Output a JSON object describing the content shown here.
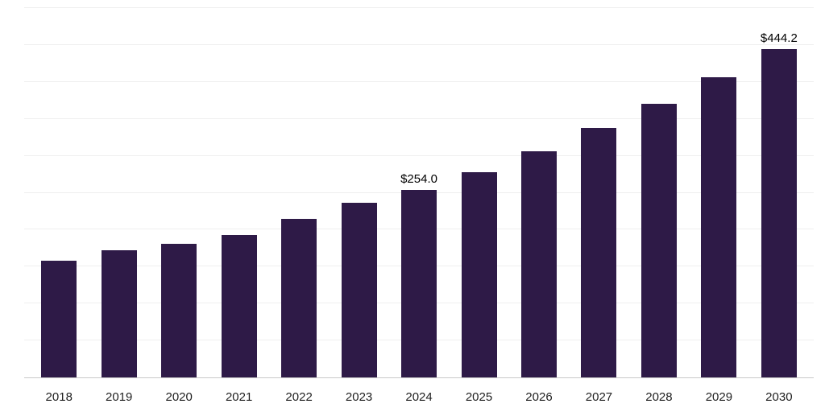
{
  "chart_data": {
    "type": "bar",
    "title": "",
    "xlabel": "",
    "ylabel": "",
    "categories": [
      "2018",
      "2019",
      "2020",
      "2021",
      "2022",
      "2023",
      "2024",
      "2025",
      "2026",
      "2027",
      "2028",
      "2029",
      "2030"
    ],
    "values": [
      158,
      172,
      181,
      193,
      215,
      236,
      254.0,
      278,
      306,
      338,
      370,
      406,
      444.2
    ],
    "data_labels": [
      {
        "category": "2024",
        "text": "$254.0"
      },
      {
        "category": "2030",
        "text": "$444.2"
      }
    ],
    "bar_color": "#2e1a47",
    "grid": true,
    "grid_step": 50,
    "ylim": [
      0,
      500
    ],
    "legend": "none",
    "y_axis_labels_visible": false
  },
  "colors": {
    "background": "#ffffff",
    "bar": "#2e1a47",
    "gridline": "#efefef",
    "axis_line": "#c9c9c9",
    "tick_text": "#1f1f1f",
    "value_label_text": "#000000"
  }
}
